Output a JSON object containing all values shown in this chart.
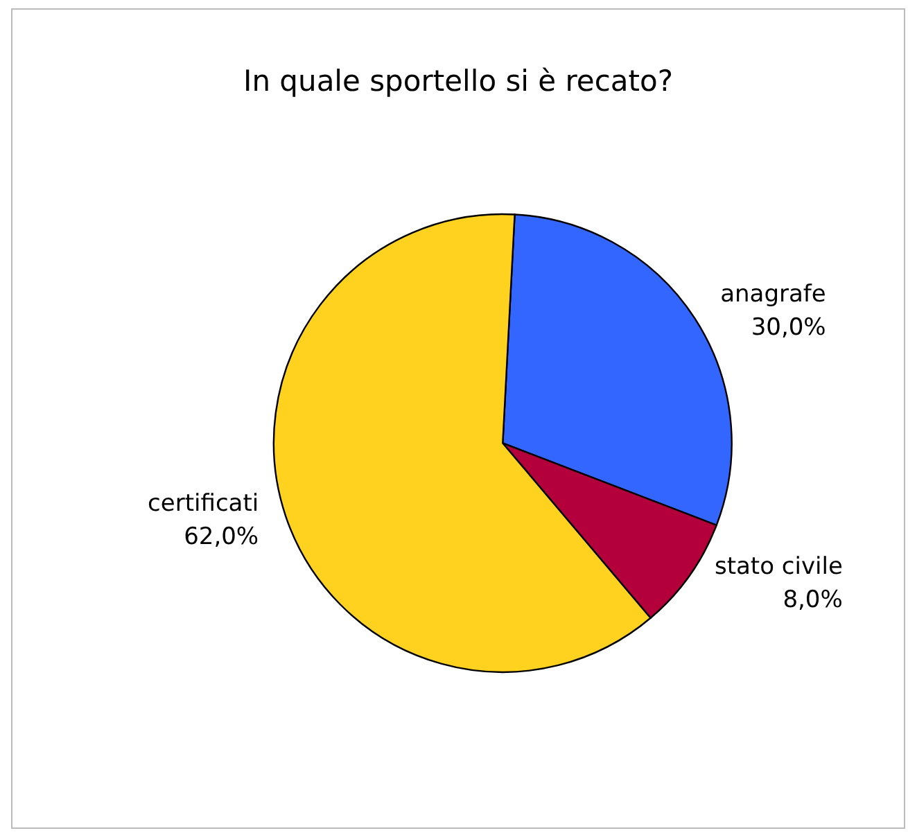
{
  "chart_data": {
    "type": "pie",
    "title": "In quale sportello si è recato?",
    "categories": [
      "anagrafe",
      "stato civile",
      "certificati"
    ],
    "values": [
      30,
      8,
      62
    ],
    "value_labels": [
      "30,0%",
      "8,0%",
      "62,0%"
    ],
    "colors": [
      "#3366ff",
      "#b3003c",
      "#ffd21f"
    ],
    "legend": false
  }
}
